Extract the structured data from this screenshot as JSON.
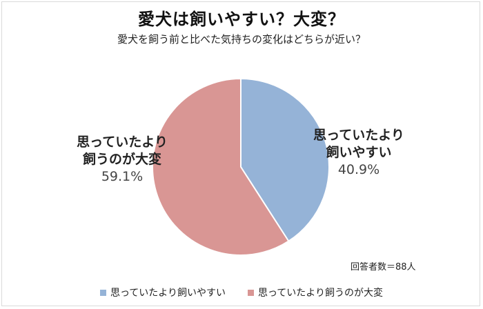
{
  "chart_data": {
    "type": "pie",
    "title": "愛犬は飼いやすい？大変？",
    "subtitle": "愛犬を飼う前と比べた気持ちの変化はどちらが近い？",
    "slices": [
      {
        "label_line1": "思っていたより",
        "label_line2": "飼いやすい",
        "legend": "思っていたより飼いやすい",
        "value": 40.9,
        "display": "40.9%",
        "color": "#95b3d7"
      },
      {
        "label_line1": "思っていたより",
        "label_line2": "飼うのが大変",
        "legend": "思っていたより飼うのが大変",
        "value": 59.1,
        "display": "59.1%",
        "color": "#d99694"
      }
    ],
    "note": "回答者数＝88人",
    "start_angle_deg": 0,
    "direction": "clockwise",
    "legend_position": "bottom"
  }
}
